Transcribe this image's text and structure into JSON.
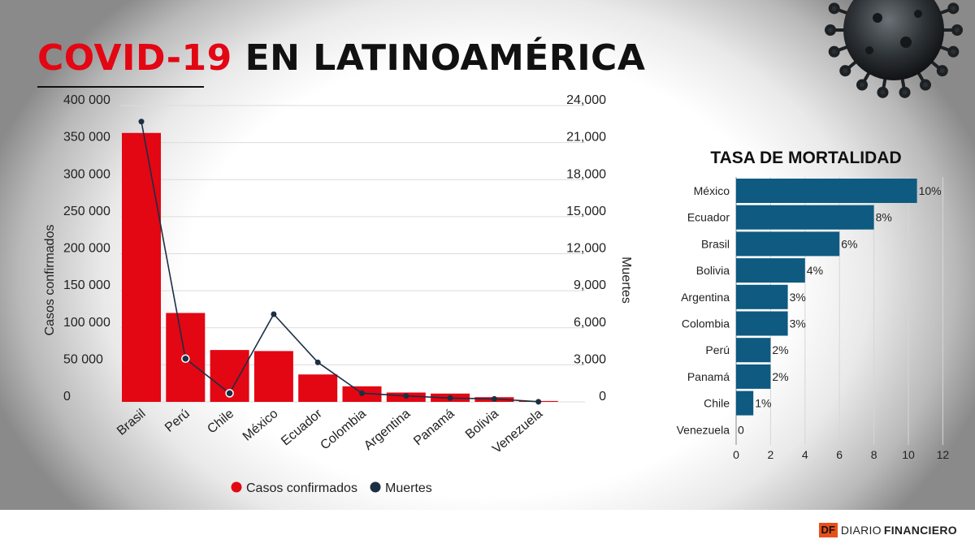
{
  "header": {
    "title_red": "COVID-19",
    "title_black": "EN LATINOAMÉRICA"
  },
  "chart_data": [
    {
      "type": "bar",
      "categories": [
        "Brasil",
        "Perú",
        "Chile",
        "México",
        "Ecuador",
        "Colombia",
        "Argentina",
        "Panamá",
        "Bolivia",
        "Venezuela"
      ],
      "series": [
        {
          "name": "Casos confirmados",
          "type": "bar",
          "axis": "left",
          "color": "#e30613",
          "values": [
            363000,
            120000,
            70000,
            68600,
            37000,
            21000,
            12600,
            11200,
            6300,
            1200
          ]
        },
        {
          "name": "Muertes",
          "type": "line",
          "axis": "right",
          "color": "#1b2f44",
          "values": [
            22700,
            3500,
            700,
            7100,
            3200,
            700,
            480,
            310,
            240,
            10
          ]
        }
      ],
      "ylabel": "Casos confirmados",
      "y2label": "Muertes",
      "ylim": [
        0,
        400000
      ],
      "y2lim": [
        0,
        24000
      ],
      "yticks": [
        "0",
        "50 000",
        "100 000",
        "150 000",
        "200 000",
        "250 000",
        "300 000",
        "350 000",
        "400 000"
      ],
      "y2ticks": [
        "0",
        "3,000",
        "6,000",
        "9,000",
        "12,000",
        "15,000",
        "18,000",
        "21,000",
        "24,000"
      ],
      "grid": true,
      "legend": "bottom"
    },
    {
      "type": "bar",
      "orientation": "horizontal",
      "title": "TASA DE MORTALIDAD",
      "categories": [
        "México",
        "Ecuador",
        "Brasil",
        "Bolivia",
        "Argentina",
        "Colombia",
        "Perú",
        "Panamá",
        "Chile",
        "Venezuela"
      ],
      "values": [
        10.5,
        8,
        6,
        4,
        3,
        3,
        2,
        2,
        1,
        0
      ],
      "data_labels": [
        "10%",
        "8%",
        "6%",
        "4%",
        "3%",
        "3%",
        "2%",
        "2%",
        "1%",
        "0"
      ],
      "xlim": [
        0,
        12
      ],
      "xticks": [
        "0",
        "2",
        "4",
        "6",
        "8",
        "10",
        "12"
      ],
      "color": "#0e5a80",
      "grid": true
    }
  ],
  "footer": {
    "logo_mark": "DF",
    "logo_name_a": "DIARIO",
    "logo_name_b": "FINANCIERO"
  },
  "colors": {
    "accent_red": "#e30613",
    "navy": "#1b2f44",
    "teal_bar": "#0e5a80"
  },
  "icons": {
    "corner_image": "virus-icon"
  }
}
